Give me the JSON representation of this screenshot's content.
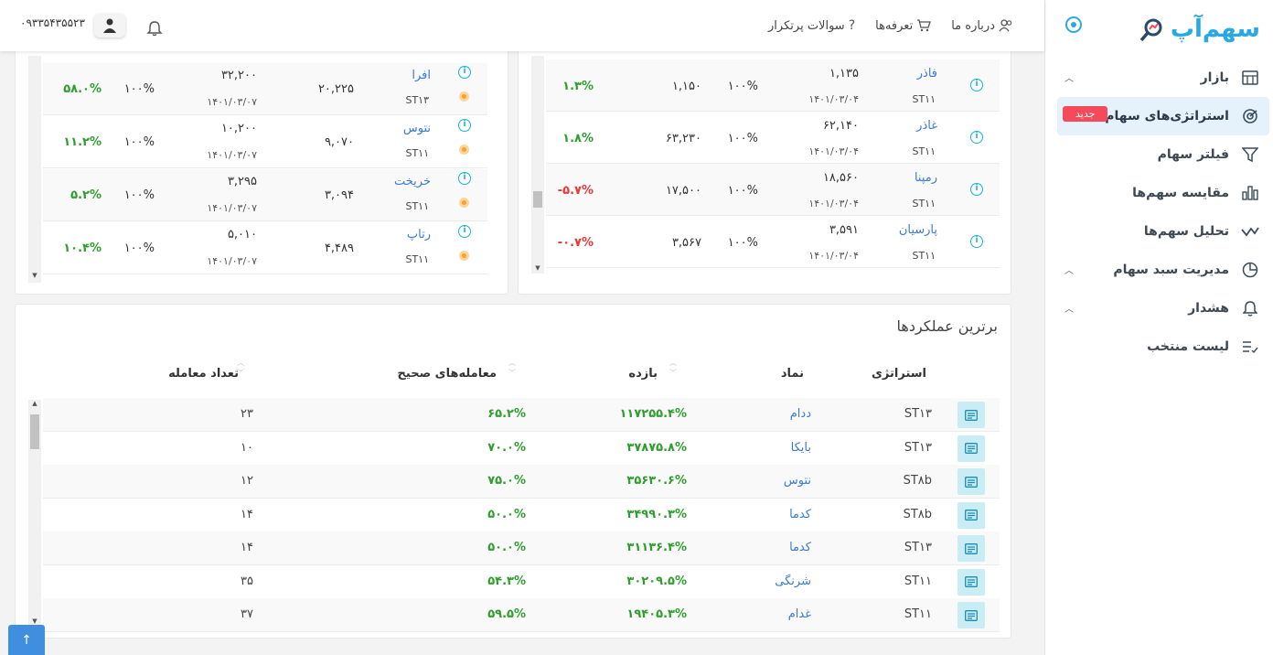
{
  "sidebar": {
    "brand": "سهم‌آپ",
    "items": [
      {
        "label": "بازار",
        "icon": "store-icon",
        "chevron": true
      },
      {
        "label": "استراتژی‌های سهام",
        "icon": "strategy-icon",
        "badge": "جدید",
        "active": true
      },
      {
        "label": "فیلتر سهام",
        "icon": "filter-icon"
      },
      {
        "label": "مقایسه سهم‌ها",
        "icon": "bar-chart-icon"
      },
      {
        "label": "تحلیل سهم‌ها",
        "icon": "analysis-icon"
      },
      {
        "label": "مدیریت سبد سهام",
        "icon": "pie-chart-icon",
        "chevron": true
      },
      {
        "label": "هشدار",
        "icon": "bell-icon",
        "chevron": true
      },
      {
        "label": "لیست منتخب",
        "icon": "list-check-icon"
      }
    ]
  },
  "header": {
    "phone": "۰۹۳۳۵۴۳۵۵۲۳",
    "nav": [
      {
        "label": "درباره ما",
        "icon": "users-icon"
      },
      {
        "label": "تعرفه‌ها",
        "icon": "cart-icon"
      },
      {
        "label": "سوالات پرتکرار",
        "icon": "question-icon"
      }
    ]
  },
  "left_table": {
    "rows": [
      {
        "symbol": "افرا",
        "code": "ST۱۳",
        "price": "۳۲,۲۰۰",
        "date": "۱۴۰۱/۰۳/۰۷",
        "entry": "۲۰,۲۲۵",
        "weight": "۱۰۰%",
        "change": "۵۸.۰%"
      },
      {
        "symbol": "نتوس",
        "code": "ST۱۱",
        "price": "۱۰,۲۰۰",
        "date": "۱۴۰۱/۰۳/۰۷",
        "entry": "۹,۰۷۰",
        "weight": "۱۰۰%",
        "change": "۱۱.۲%"
      },
      {
        "symbol": "خریخت",
        "code": "ST۱۱",
        "price": "۳,۲۹۵",
        "date": "۱۴۰۱/۰۳/۰۷",
        "entry": "۳,۰۹۴",
        "weight": "۱۰۰%",
        "change": "۵.۲%"
      },
      {
        "symbol": "رتاپ",
        "code": "ST۱۱",
        "price": "۵,۰۱۰",
        "date": "۱۴۰۱/۰۳/۰۷",
        "entry": "۴,۴۸۹",
        "weight": "۱۰۰%",
        "change": "۱۰.۴%"
      }
    ]
  },
  "right_table": {
    "rows": [
      {
        "symbol": "فاذر",
        "code": "ST۱۱",
        "price": "۱,۱۳۵",
        "date": "۱۴۰۱/۰۳/۰۴",
        "weight": "۱۰۰%",
        "entry": "۱,۱۵۰",
        "change": "۱.۳%",
        "negative": false
      },
      {
        "symbol": "غاذر",
        "code": "ST۱۱",
        "price": "۶۲,۱۴۰",
        "date": "۱۴۰۱/۰۳/۰۴",
        "weight": "۱۰۰%",
        "entry": "۶۳,۲۳۰",
        "change": "۱.۸%",
        "negative": false
      },
      {
        "symbol": "رمپنا",
        "code": "ST۱۱",
        "price": "۱۸,۵۶۰",
        "date": "۱۴۰۱/۰۳/۰۴",
        "weight": "۱۰۰%",
        "entry": "۱۷,۵۰۰",
        "change": "-۵.۷%",
        "negative": true
      },
      {
        "symbol": "پارسیان",
        "code": "ST۱۱",
        "price": "۳,۵۹۱",
        "date": "۱۴۰۱/۰۳/۰۴",
        "weight": "۱۰۰%",
        "entry": "۳,۵۶۷",
        "change": "-۰.۷%",
        "negative": true
      }
    ]
  },
  "top_performers": {
    "title": "برترین عملکردها",
    "headers": {
      "strategy": "استراتژی",
      "symbol": "نماد",
      "return": "بازده",
      "correct_trades": "معامله‌های صحیح",
      "trade_count": "تعداد معامله"
    },
    "rows": [
      {
        "strategy": "ST۱۳",
        "symbol": "ددام",
        "return": "۱۱۷۲۵۵.۴%",
        "correct": "۶۵.۲%",
        "count": "۲۳"
      },
      {
        "strategy": "ST۱۳",
        "symbol": "بایکا",
        "return": "۳۷۸۷۵.۸%",
        "correct": "۷۰.۰%",
        "count": "۱۰"
      },
      {
        "strategy": "ST۸b",
        "symbol": "نتوس",
        "return": "۳۵۶۳۰.۶%",
        "correct": "۷۵.۰%",
        "count": "۱۲"
      },
      {
        "strategy": "ST۸b",
        "symbol": "کدما",
        "return": "۳۴۹۹۰.۳%",
        "correct": "۵۰.۰%",
        "count": "۱۴"
      },
      {
        "strategy": "ST۱۳",
        "symbol": "کدما",
        "return": "۳۱۱۳۶.۴%",
        "correct": "۵۰.۰%",
        "count": "۱۴"
      },
      {
        "strategy": "ST۱۱",
        "symbol": "شرنگی",
        "return": "۳۰۲۰۹.۵%",
        "correct": "۵۴.۳%",
        "count": "۳۵"
      },
      {
        "strategy": "ST۱۱",
        "symbol": "غدام",
        "return": "۱۹۴۰۵.۳%",
        "correct": "۵۹.۵%",
        "count": "۳۷"
      }
    ]
  },
  "colors": {
    "accent": "#29a9e1",
    "positive": "#2e9e2e",
    "negative": "#e53935",
    "badge": "#f44a5b"
  }
}
